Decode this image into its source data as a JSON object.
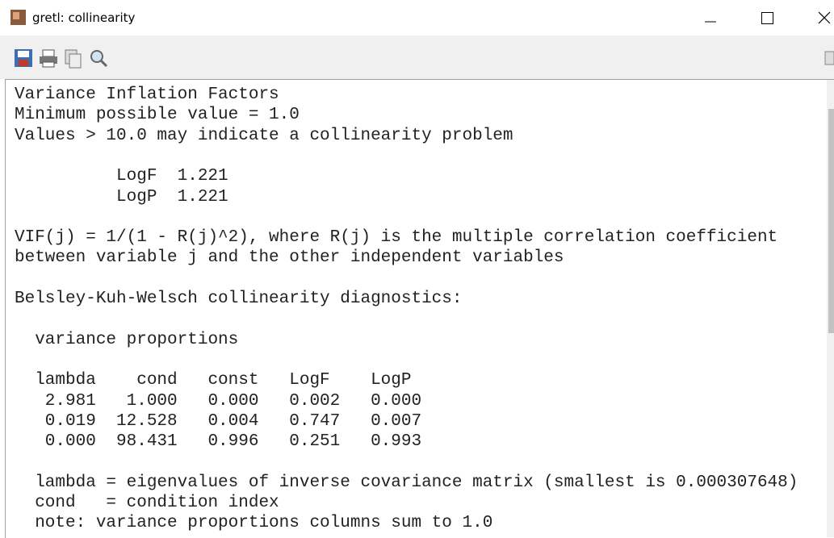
{
  "window": {
    "title": "gretl: collinearity"
  },
  "output": {
    "vif": {
      "heading": [
        "Variance Inflation Factors",
        "Minimum possible value = 1.0",
        "Values > 10.0 may indicate a collinearity problem"
      ],
      "rows": [
        [
          "LogF",
          "1.221"
        ],
        [
          "LogP",
          "1.221"
        ]
      ],
      "note": [
        "VIF(j) = 1/(1 - R(j)^2), where R(j) is the multiple correlation coefficient",
        "between variable j and the other independent variables"
      ]
    },
    "bkw": {
      "heading": "Belsley-Kuh-Welsch collinearity diagnostics:",
      "subheading": "variance proportions",
      "table": {
        "header": [
          "lambda",
          "cond",
          "const",
          "LogF",
          "LogP"
        ],
        "rows": [
          [
            "2.981",
            "1.000",
            "0.000",
            "0.002",
            "0.000"
          ],
          [
            "0.019",
            "12.528",
            "0.004",
            "0.747",
            "0.007"
          ],
          [
            "0.000",
            "98.431",
            "0.996",
            "0.251",
            "0.993"
          ]
        ]
      },
      "notes": [
        "lambda = eigenvalues of inverse covariance matrix (smallest is 0.000307648)",
        "cond   = condition index",
        "note: variance proportions columns sum to 1.0"
      ]
    }
  }
}
